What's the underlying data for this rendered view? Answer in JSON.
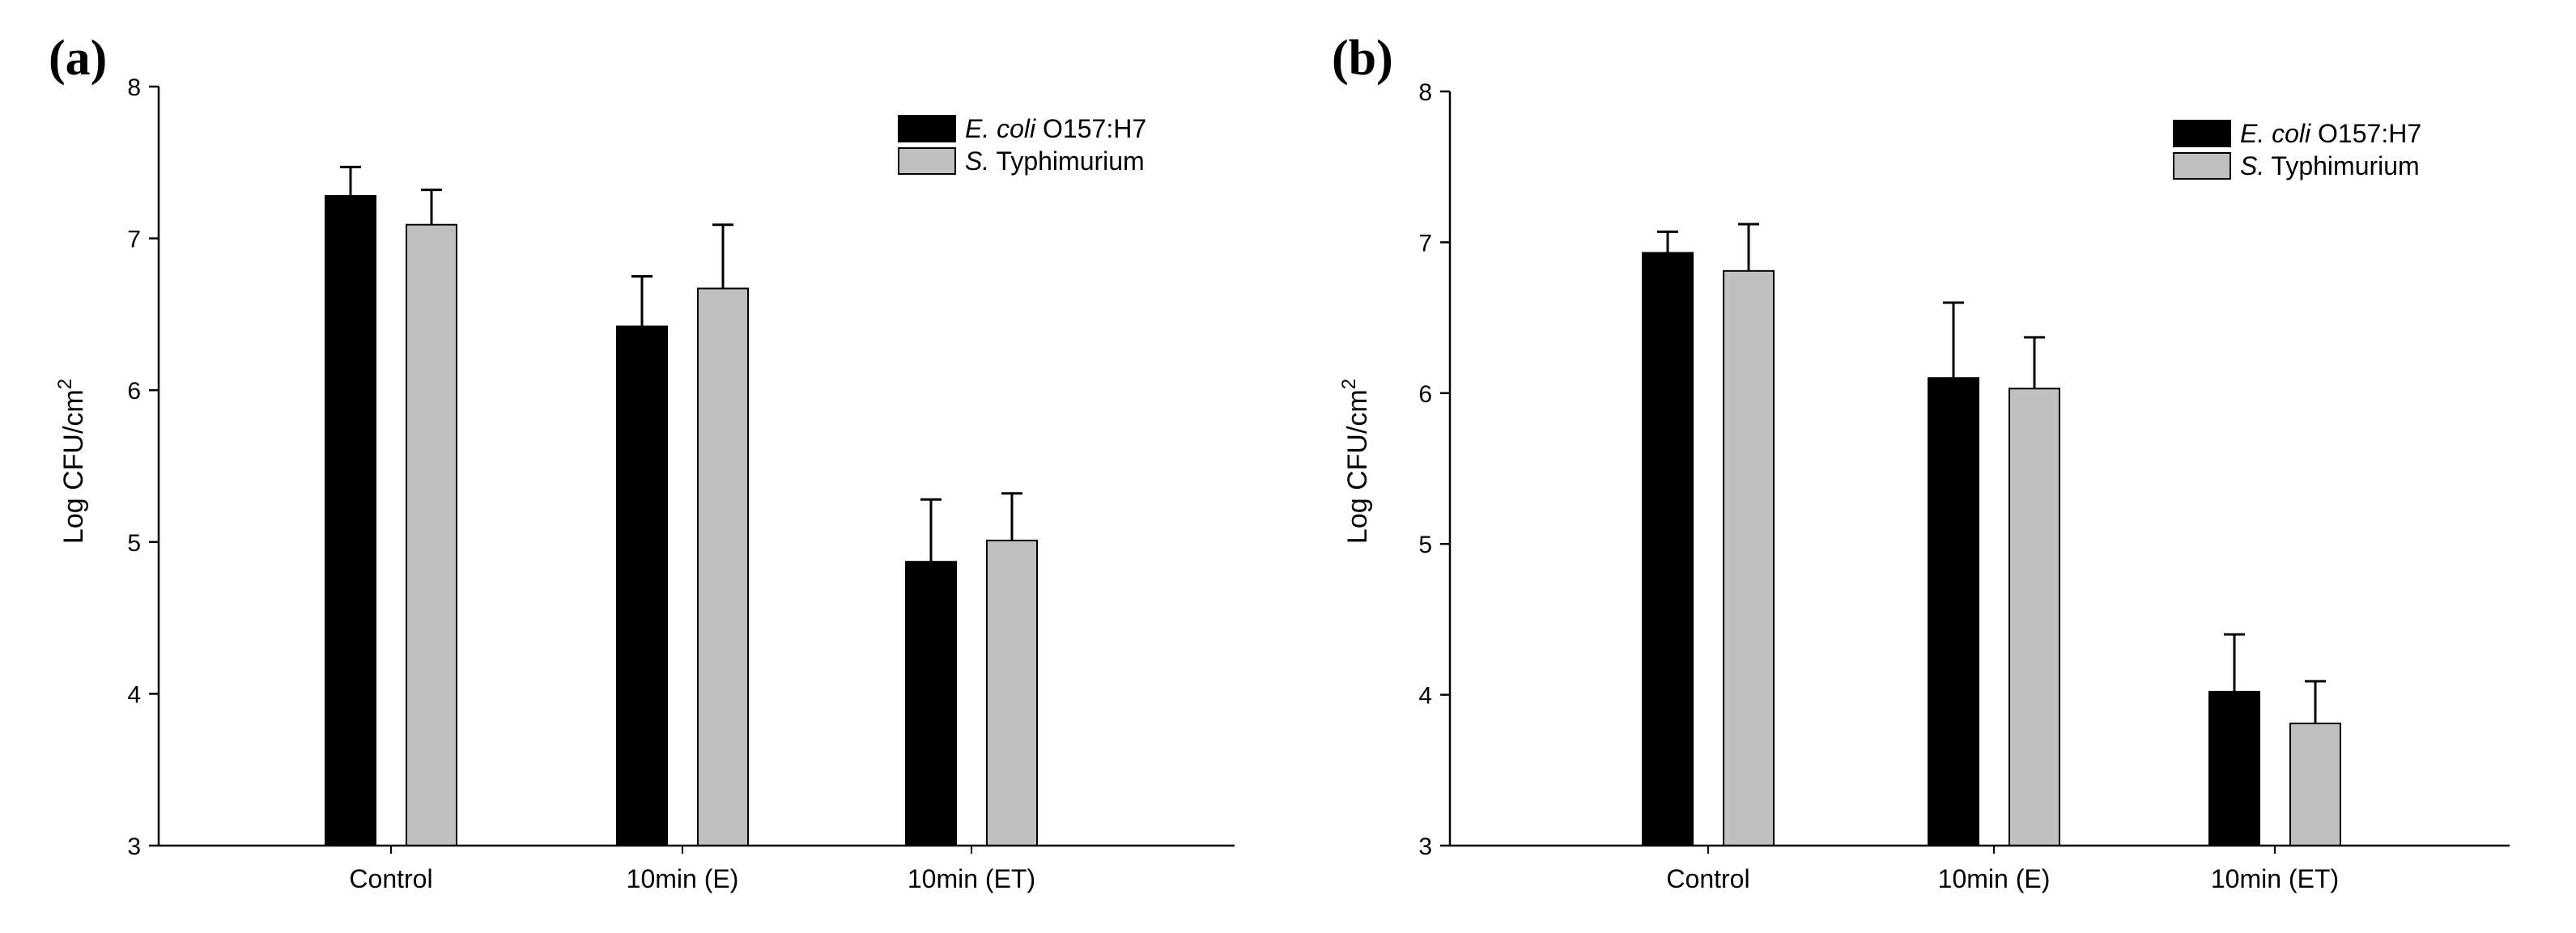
{
  "chart_data": [
    {
      "type": "bar",
      "panel_label": "(a)",
      "title": "",
      "categories": [
        "Control",
        "10min (E)",
        "10min (ET)"
      ],
      "series": [
        {
          "name_italic": "E. coli",
          "name_rest": " O157:H7",
          "values": [
            7.28,
            6.42,
            4.87
          ],
          "errors": [
            0.19,
            0.33,
            0.41
          ]
        },
        {
          "name_italic": "S.",
          "name_rest": " Typhimurium",
          "values": [
            7.09,
            6.67,
            5.01
          ],
          "errors": [
            0.23,
            0.42,
            0.31
          ]
        }
      ],
      "xlabel": "",
      "ylabel": "Log CFU/cm",
      "ylabel_sup": "2",
      "ylim": [
        3,
        8
      ],
      "yticks": [
        "3",
        "4",
        "5",
        "6",
        "7",
        "8"
      ],
      "legend_position": "top-right",
      "grid": false
    },
    {
      "type": "bar",
      "panel_label": "(b)",
      "title": "",
      "categories": [
        "Control",
        "10min (E)",
        "10min (ET)"
      ],
      "series": [
        {
          "name_italic": "E. coli",
          "name_rest": " O157:H7",
          "values": [
            6.93,
            6.1,
            4.02
          ],
          "errors": [
            0.14,
            0.5,
            0.38
          ]
        },
        {
          "name_italic": "S.",
          "name_rest": " Typhimurium",
          "values": [
            6.81,
            6.03,
            3.81
          ],
          "errors": [
            0.31,
            0.34,
            0.28
          ]
        }
      ],
      "xlabel": "",
      "ylabel": "Log CFU/cm",
      "ylabel_sup": "2",
      "ylim": [
        3,
        8
      ],
      "yticks": [
        "3",
        "4",
        "5",
        "6",
        "7",
        "8"
      ],
      "legend_position": "top-right",
      "grid": false
    }
  ],
  "colors": {
    "series_1": "#000000",
    "series_2": "#c0c0c0",
    "axis": "#000000"
  }
}
